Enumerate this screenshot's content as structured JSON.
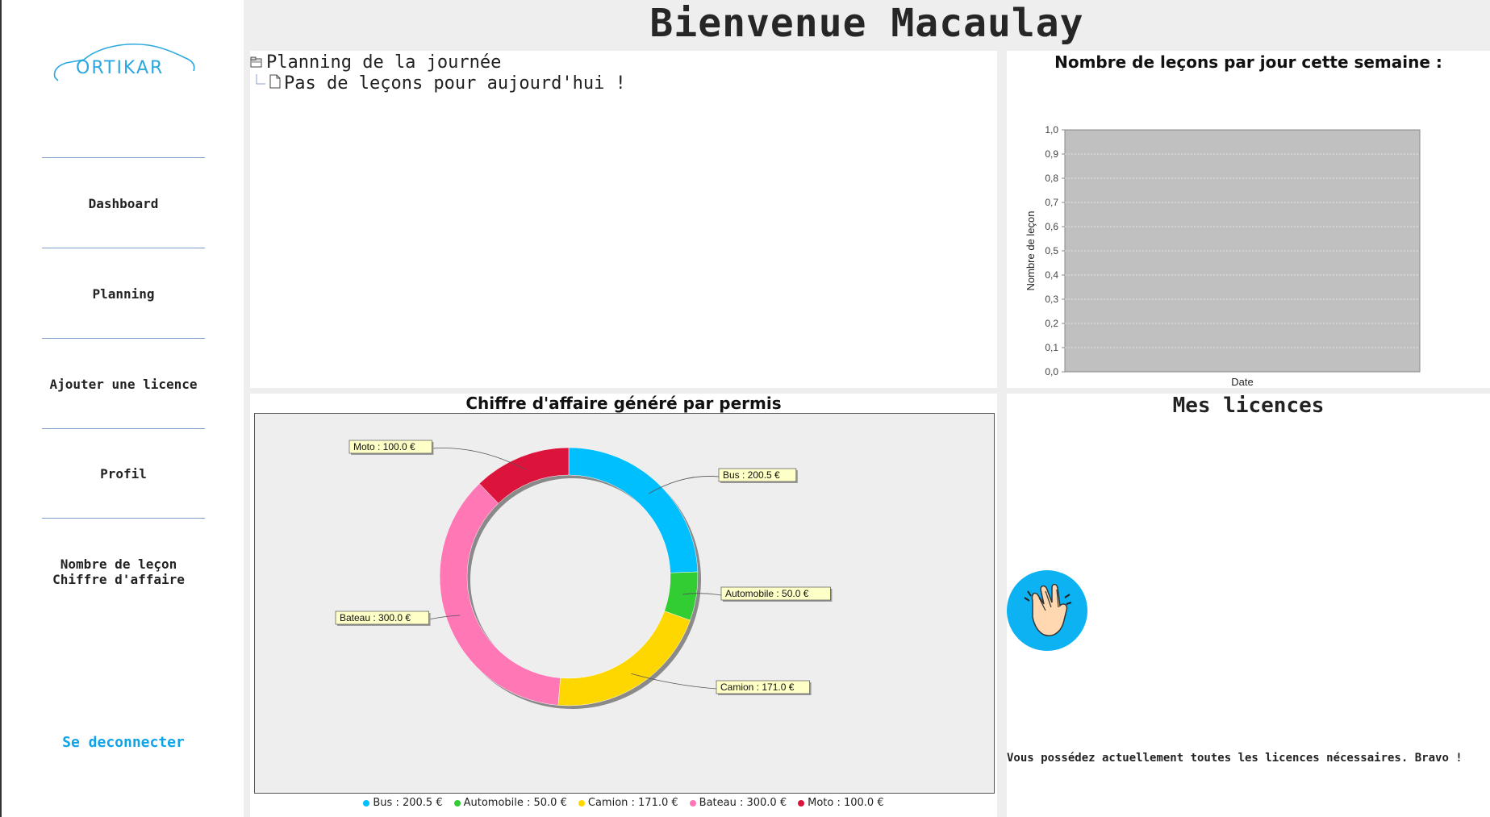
{
  "logo": {
    "text": "ORTIKAR"
  },
  "sidebar": {
    "items": [
      {
        "label": "Dashboard"
      },
      {
        "label": "Planning"
      },
      {
        "label": "Ajouter une licence"
      },
      {
        "label": "Profil"
      },
      {
        "label": "Nombre de leçon",
        "label2": "Chiffre d'affaire"
      }
    ],
    "logout": "Se deconnecter"
  },
  "header": {
    "title": "Bienvenue Macaulay"
  },
  "planning": {
    "root": "Planning de la journée",
    "child": "Pas de leçons pour aujourd'hui !"
  },
  "licences": {
    "title": "Mes licences",
    "message": "Vous possédez actuellement toutes les licences nécessaires. Bravo !"
  },
  "colors": {
    "accent": "#0fa3e8",
    "bus": "#00bfff",
    "automobile": "#32cd32",
    "camion": "#ffd700",
    "bateau": "#ff77b4",
    "moto": "#dc143c"
  },
  "chart_data": [
    {
      "type": "bar",
      "title": "Nombre de leçons par jour cette semaine :",
      "xlabel": "Date",
      "ylabel": "Nombre de leçon",
      "ylim": [
        0,
        1
      ],
      "yticks": [
        "0,0",
        "0,1",
        "0,2",
        "0,3",
        "0,4",
        "0,5",
        "0,6",
        "0,7",
        "0,8",
        "0,9",
        "1,0"
      ],
      "categories": [],
      "values": [],
      "grid": true
    },
    {
      "type": "pie",
      "title": "Chiffre d'affaire généré par permis",
      "unit": "€",
      "slices": [
        {
          "name": "Bus",
          "value": 200.5,
          "label": "Bus : 200.5 €",
          "legend": "Bus : 200.5 €",
          "color": "#00bfff"
        },
        {
          "name": "Automobile",
          "value": 50.0,
          "label": "Automobile : 50.0 €",
          "legend": "Automobile : 50.0 €",
          "color": "#32cd32"
        },
        {
          "name": "Camion",
          "value": 171.0,
          "label": "Camion : 171.0 €",
          "legend": "Camion : 171.0 €",
          "color": "#ffd700"
        },
        {
          "name": "Bateau",
          "value": 300.0,
          "label": "Bateau : 300.0 €",
          "legend": "Bateau : 300.0 €",
          "color": "#ff77b4"
        },
        {
          "name": "Moto",
          "value": 100.0,
          "label": "Moto : 100.0 €",
          "legend": "Moto : 100.0 €",
          "color": "#dc143c"
        }
      ],
      "legend_position": "bottom"
    }
  ]
}
